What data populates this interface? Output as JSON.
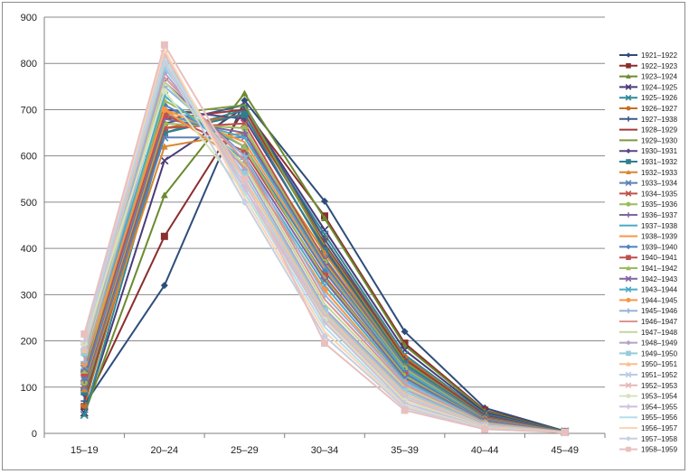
{
  "chart_data": {
    "type": "line",
    "title": "",
    "xlabel": "",
    "ylabel": "",
    "categories": [
      "15–19",
      "20–24",
      "25–29",
      "30–34",
      "35–39",
      "40–44",
      "45–49"
    ],
    "ylim": [
      0,
      900
    ],
    "yticks": [
      0,
      100,
      200,
      300,
      400,
      500,
      600,
      700,
      800,
      900
    ],
    "grid": true,
    "legend_position": "right",
    "series": [
      {
        "name": "1921–1922",
        "color": "#2e4d7b",
        "marker": "diamond",
        "values": [
          62,
          320,
          720,
          502,
          220,
          55,
          5
        ]
      },
      {
        "name": "1922–1923",
        "color": "#8b2e2e",
        "marker": "square",
        "values": [
          58,
          426,
          700,
          470,
          195,
          50,
          4
        ]
      },
      {
        "name": "1923–1924",
        "color": "#6b8a2e",
        "marker": "triangle",
        "values": [
          42,
          515,
          735,
          465,
          190,
          48,
          4
        ]
      },
      {
        "name": "1924–1925",
        "color": "#4a3a7a",
        "marker": "x",
        "values": [
          45,
          590,
          705,
          440,
          180,
          45,
          4
        ]
      },
      {
        "name": "1925–1926",
        "color": "#2e8a99",
        "marker": "x",
        "values": [
          40,
          650,
          700,
          430,
          170,
          42,
          4
        ]
      },
      {
        "name": "1926–1927",
        "color": "#c86e1e",
        "marker": "circle",
        "values": [
          60,
          660,
          690,
          420,
          165,
          40,
          3
        ]
      },
      {
        "name": "1927–1938",
        "color": "#3b5b8a",
        "marker": "plus",
        "values": [
          70,
          670,
          710,
          420,
          160,
          40,
          3
        ]
      },
      {
        "name": "1928–1929",
        "color": "#9e3a3a",
        "marker": "none",
        "values": [
          75,
          680,
          700,
          410,
          160,
          38,
          3
        ]
      },
      {
        "name": "1929–1930",
        "color": "#7d9a3c",
        "marker": "none",
        "values": [
          80,
          690,
          710,
          405,
          155,
          36,
          3
        ]
      },
      {
        "name": "1930–1931",
        "color": "#5a4785",
        "marker": "diamond",
        "values": [
          85,
          700,
          680,
          400,
          150,
          35,
          3
        ]
      },
      {
        "name": "1931–1932",
        "color": "#2f7e8e",
        "marker": "square",
        "values": [
          90,
          650,
          690,
          395,
          150,
          34,
          3
        ]
      },
      {
        "name": "1932–1933",
        "color": "#d9862e",
        "marker": "triangle",
        "values": [
          95,
          620,
          650,
          390,
          145,
          33,
          3
        ]
      },
      {
        "name": "1933–1934",
        "color": "#5c82b5",
        "marker": "x",
        "values": [
          100,
          640,
          640,
          380,
          145,
          32,
          3
        ]
      },
      {
        "name": "1934–1935",
        "color": "#c0504d",
        "marker": "x",
        "values": [
          105,
          660,
          670,
          375,
          140,
          31,
          3
        ]
      },
      {
        "name": "1935–1936",
        "color": "#9bbb59",
        "marker": "circle",
        "values": [
          110,
          670,
          660,
          370,
          140,
          30,
          3
        ]
      },
      {
        "name": "1936–1937",
        "color": "#8064a2",
        "marker": "plus",
        "values": [
          115,
          680,
          650,
          365,
          135,
          29,
          3
        ]
      },
      {
        "name": "1937–1938",
        "color": "#4bacc6",
        "marker": "none",
        "values": [
          120,
          690,
          640,
          360,
          135,
          28,
          3
        ]
      },
      {
        "name": "1938–1939",
        "color": "#f79646",
        "marker": "none",
        "values": [
          125,
          700,
          630,
          355,
          130,
          27,
          3
        ]
      },
      {
        "name": "1939–1940",
        "color": "#4f81bd",
        "marker": "diamond",
        "values": [
          120,
          710,
          620,
          350,
          130,
          27,
          3
        ]
      },
      {
        "name": "1940–1941",
        "color": "#c0504d",
        "marker": "square",
        "values": [
          130,
          690,
          610,
          340,
          125,
          26,
          3
        ]
      },
      {
        "name": "1941–1942",
        "color": "#9bbb59",
        "marker": "triangle",
        "values": [
          135,
          720,
          620,
          335,
          125,
          25,
          3
        ]
      },
      {
        "name": "1942–1943",
        "color": "#8064a2",
        "marker": "x",
        "values": [
          140,
          760,
          600,
          330,
          120,
          25,
          3
        ]
      },
      {
        "name": "1943–1944",
        "color": "#4bacc6",
        "marker": "x",
        "values": [
          145,
          730,
          590,
          320,
          115,
          24,
          3
        ]
      },
      {
        "name": "1944–1945",
        "color": "#f79646",
        "marker": "circle",
        "values": [
          150,
          700,
          580,
          310,
          110,
          23,
          3
        ]
      },
      {
        "name": "1945–1946",
        "color": "#95b3d7",
        "marker": "plus",
        "values": [
          155,
          750,
          600,
          300,
          110,
          22,
          3
        ]
      },
      {
        "name": "1946–1947",
        "color": "#d99694",
        "marker": "none",
        "values": [
          160,
          770,
          590,
          290,
          105,
          21,
          3
        ]
      },
      {
        "name": "1947–1948",
        "color": "#c3d69b",
        "marker": "none",
        "values": [
          165,
          760,
          580,
          280,
          100,
          20,
          3
        ]
      },
      {
        "name": "1948–1949",
        "color": "#b3a2c7",
        "marker": "diamond",
        "values": [
          170,
          780,
          570,
          270,
          95,
          19,
          3
        ]
      },
      {
        "name": "1949–1950",
        "color": "#93cddd",
        "marker": "square",
        "values": [
          175,
          790,
          560,
          265,
          90,
          18,
          3
        ]
      },
      {
        "name": "1950–1951",
        "color": "#fac08f",
        "marker": "triangle",
        "values": [
          180,
          800,
          550,
          260,
          85,
          17,
          3
        ]
      },
      {
        "name": "1951–1952",
        "color": "#b9cde5",
        "marker": "x",
        "values": [
          185,
          810,
          540,
          255,
          80,
          16,
          2
        ]
      },
      {
        "name": "1952–1953",
        "color": "#e6b9b8",
        "marker": "x",
        "values": [
          190,
          820,
          530,
          250,
          75,
          15,
          2
        ]
      },
      {
        "name": "1953–1954",
        "color": "#d7e4bd",
        "marker": "circle",
        "values": [
          195,
          740,
          520,
          245,
          70,
          14,
          2
        ]
      },
      {
        "name": "1954–1955",
        "color": "#ccc1da",
        "marker": "plus",
        "values": [
          200,
          800,
          530,
          240,
          65,
          13,
          2
        ]
      },
      {
        "name": "1955–1956",
        "color": "#b7dee8",
        "marker": "none",
        "values": [
          205,
          810,
          520,
          230,
          60,
          12,
          2
        ]
      },
      {
        "name": "1956–1957",
        "color": "#fcd5b5",
        "marker": "none",
        "values": [
          210,
          830,
          510,
          220,
          58,
          11,
          2
        ]
      },
      {
        "name": "1957–1958",
        "color": "#c5d0e0",
        "marker": "diamond",
        "values": [
          212,
          800,
          500,
          210,
          55,
          10,
          2
        ]
      },
      {
        "name": "1958–1959",
        "color": "#e8c0c0",
        "marker": "square",
        "values": [
          215,
          840,
          550,
          195,
          50,
          9,
          2
        ]
      }
    ]
  }
}
